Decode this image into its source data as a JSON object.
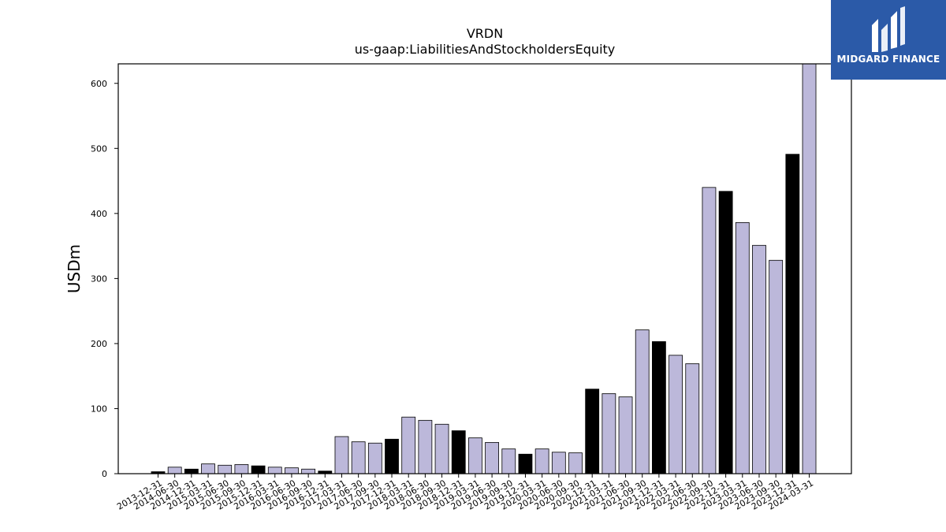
{
  "brand": {
    "name": "MIDGARD FINANCE",
    "logo_icon": "midgard-logo-icon",
    "bg_color": "#2b5aa8"
  },
  "chart_data": {
    "type": "bar",
    "title": "VRDN",
    "subtitle": "us-gaap:LiabilitiesAndStockholdersEquity",
    "xlabel": "",
    "ylabel": "USDm",
    "ylim": [
      0,
      630
    ],
    "yticks": [
      0,
      100,
      200,
      300,
      400,
      500,
      600
    ],
    "grid": false,
    "colors": {
      "quarterly": "#bcb8da",
      "annual": "#000000",
      "edge": "#000000"
    },
    "categories": [
      "2013-12-31",
      "2014-06-30",
      "2014-12-31",
      "2015-03-31",
      "2015-06-30",
      "2015-09-30",
      "2015-12-31",
      "2016-03-31",
      "2016-06-30",
      "2016-09-30",
      "2016-12-31",
      "2017-03-31",
      "2017-06-30",
      "2017-09-30",
      "2017-12-31",
      "2018-03-31",
      "2018-06-30",
      "2018-09-30",
      "2018-12-31",
      "2019-03-31",
      "2019-06-30",
      "2019-09-30",
      "2019-12-31",
      "2020-03-31",
      "2020-06-30",
      "2020-09-30",
      "2020-12-31",
      "2021-03-31",
      "2021-06-30",
      "2021-09-30",
      "2021-12-31",
      "2022-03-31",
      "2022-06-30",
      "2022-09-30",
      "2022-12-31",
      "2023-03-31",
      "2023-06-30",
      "2023-09-30",
      "2023-12-31",
      "2024-03-31"
    ],
    "values": [
      3,
      10,
      7,
      15,
      13,
      14,
      12,
      10,
      9,
      7,
      4,
      57,
      49,
      47,
      53,
      87,
      82,
      76,
      66,
      55,
      48,
      38,
      30,
      38,
      33,
      32,
      130,
      123,
      118,
      221,
      203,
      182,
      169,
      440,
      434,
      386,
      351,
      328,
      491,
      630
    ],
    "annual": [
      true,
      false,
      true,
      false,
      false,
      false,
      true,
      false,
      false,
      false,
      true,
      false,
      false,
      false,
      true,
      false,
      false,
      false,
      true,
      false,
      false,
      false,
      true,
      false,
      false,
      false,
      true,
      false,
      false,
      false,
      true,
      false,
      false,
      false,
      true,
      false,
      false,
      false,
      true,
      false
    ]
  }
}
